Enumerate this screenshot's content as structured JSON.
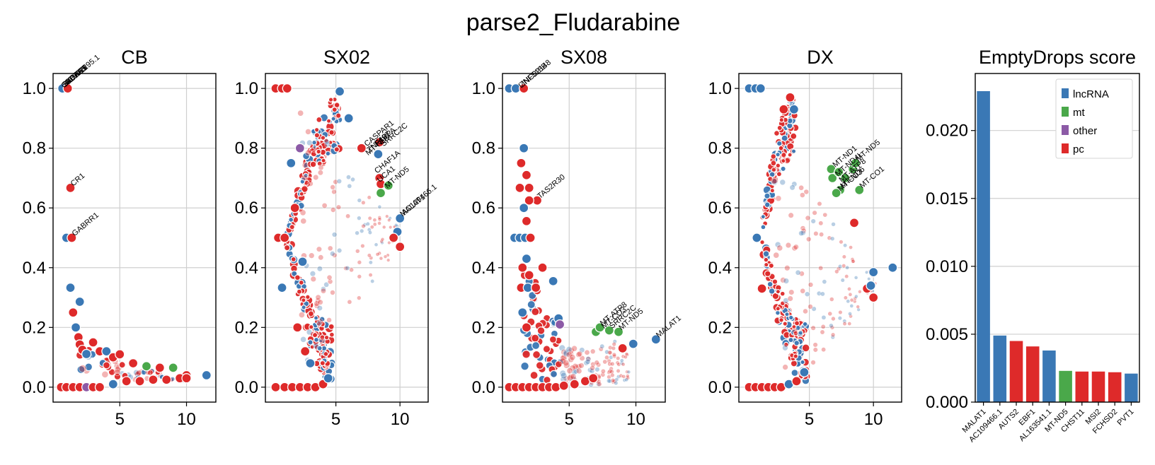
{
  "figure": {
    "suptitle": "parse2_Fludarabine"
  },
  "colors": {
    "lncRNA": "#3a78b5",
    "mt": "#4aa84a",
    "other": "#8c5aa6",
    "pc": "#de2a2a"
  },
  "chart_data": [
    {
      "type": "scatter",
      "title": "CB",
      "xlim": [
        0.0,
        12.2
      ],
      "ylim": [
        -0.05,
        1.05
      ],
      "xticks": [
        5,
        10
      ],
      "yticks": [
        0.0,
        0.2,
        0.4,
        0.6,
        0.8,
        1.0
      ],
      "ytick_labels": [
        "0.0",
        "0.2",
        "0.4",
        "0.6",
        "0.8",
        "1.0"
      ],
      "show_yticklabels": true,
      "grid": true,
      "points": [
        {
          "x": 0.7,
          "y": 1.0,
          "c": "lncRNA"
        },
        {
          "x": 1.1,
          "y": 1.0,
          "c": "pc"
        },
        {
          "x": 1.3,
          "y": 0.667,
          "c": "pc"
        },
        {
          "x": 1.0,
          "y": 0.5,
          "c": "lncRNA"
        },
        {
          "x": 1.4,
          "y": 0.5,
          "c": "pc"
        },
        {
          "x": 1.3,
          "y": 0.333,
          "c": "lncRNA"
        },
        {
          "x": 2.0,
          "y": 0.286,
          "c": "lncRNA"
        },
        {
          "x": 1.5,
          "y": 0.25,
          "c": "pc"
        },
        {
          "x": 1.7,
          "y": 0.2,
          "c": "lncRNA"
        },
        {
          "x": 1.9,
          "y": 0.167,
          "c": "pc"
        },
        {
          "x": 2.0,
          "y": 0.143,
          "c": "pc"
        },
        {
          "x": 2.2,
          "y": 0.125,
          "c": "pc"
        },
        {
          "x": 2.5,
          "y": 0.111,
          "c": "lncRNA"
        },
        {
          "x": 3.0,
          "y": 0.15,
          "c": "pc"
        },
        {
          "x": 3.5,
          "y": 0.12,
          "c": "pc"
        },
        {
          "x": 4.0,
          "y": 0.12,
          "c": "lncRNA"
        },
        {
          "x": 4.5,
          "y": 0.1,
          "c": "pc"
        },
        {
          "x": 5.0,
          "y": 0.11,
          "c": "pc"
        },
        {
          "x": 6.0,
          "y": 0.08,
          "c": "pc"
        },
        {
          "x": 7.0,
          "y": 0.07,
          "c": "mt"
        },
        {
          "x": 8.0,
          "y": 0.065,
          "c": "pc"
        },
        {
          "x": 9.0,
          "y": 0.065,
          "c": "mt"
        },
        {
          "x": 10.0,
          "y": 0.04,
          "c": "pc"
        },
        {
          "x": 11.5,
          "y": 0.04,
          "c": "lncRNA"
        },
        {
          "x": 0.6,
          "y": 0.0,
          "c": "pc"
        },
        {
          "x": 1.0,
          "y": 0.0,
          "c": "pc"
        },
        {
          "x": 1.5,
          "y": 0.0,
          "c": "pc"
        },
        {
          "x": 2.0,
          "y": 0.0,
          "c": "pc"
        },
        {
          "x": 2.5,
          "y": 0.0,
          "c": "other"
        },
        {
          "x": 3.0,
          "y": 0.0,
          "c": "pc"
        },
        {
          "x": 3.5,
          "y": 0.0,
          "c": "pc"
        },
        {
          "x": 4.5,
          "y": 0.01,
          "c": "lncRNA"
        },
        {
          "x": 5.5,
          "y": 0.02,
          "c": "pc"
        },
        {
          "x": 6.5,
          "y": 0.02,
          "c": "pc"
        },
        {
          "x": 7.5,
          "y": 0.025,
          "c": "pc"
        },
        {
          "x": 8.5,
          "y": 0.025,
          "c": "pc"
        },
        {
          "x": 9.5,
          "y": 0.03,
          "c": "pc"
        },
        {
          "x": 10.0,
          "y": 0.03,
          "c": "pc"
        }
      ],
      "labels": [
        {
          "text": "CR1",
          "x": 1.3,
          "y": 0.667
        },
        {
          "text": "GABRR1",
          "x": 1.4,
          "y": 0.5
        }
      ],
      "top_labels": [
        "GABRR1",
        "SLC6A5",
        "KCNJ16",
        "AC092295.1",
        "BCAS1"
      ],
      "top_labels_anchor": {
        "x": 0.8,
        "y": 1.0
      },
      "cloud": {
        "shape": "decay",
        "fromX": 2.0,
        "toX": 10.5,
        "yTop0": 0.16,
        "yTop1": 0.03,
        "yBot0": 0.03,
        "yBot1": 0.02,
        "density": 70
      }
    },
    {
      "type": "scatter",
      "title": "SX02",
      "xlim": [
        -0.5,
        12.2
      ],
      "ylim": [
        -0.05,
        1.05
      ],
      "xticks": [
        5,
        10
      ],
      "yticks": [
        0.0,
        0.2,
        0.4,
        0.6,
        0.8,
        1.0
      ],
      "ytick_labels": [
        "0.0",
        "0.2",
        "0.4",
        "0.6",
        "0.8",
        "1.0"
      ],
      "show_yticklabels": true,
      "grid": true,
      "points": [
        {
          "x": 0.3,
          "y": 1.0,
          "c": "pc"
        },
        {
          "x": 0.8,
          "y": 1.0,
          "c": "pc"
        },
        {
          "x": 1.2,
          "y": 1.0,
          "c": "pc"
        },
        {
          "x": 0.5,
          "y": 0.5,
          "c": "pc"
        },
        {
          "x": 1.0,
          "y": 0.5,
          "c": "pc"
        },
        {
          "x": 0.8,
          "y": 0.333,
          "c": "lncRNA"
        },
        {
          "x": 0.3,
          "y": 0.0,
          "c": "pc"
        },
        {
          "x": 1.0,
          "y": 0.0,
          "c": "pc"
        },
        {
          "x": 1.6,
          "y": 0.0,
          "c": "pc"
        },
        {
          "x": 2.2,
          "y": 0.0,
          "c": "pc"
        },
        {
          "x": 2.8,
          "y": 0.0,
          "c": "pc"
        },
        {
          "x": 3.4,
          "y": 0.0,
          "c": "pc"
        },
        {
          "x": 4.0,
          "y": 0.01,
          "c": "pc"
        },
        {
          "x": 4.4,
          "y": 0.03,
          "c": "lncRNA"
        },
        {
          "x": 6.0,
          "y": 0.9,
          "c": "lncRNA"
        },
        {
          "x": 5.3,
          "y": 0.99,
          "c": "lncRNA"
        },
        {
          "x": 7.0,
          "y": 0.8,
          "c": "pc"
        },
        {
          "x": 8.4,
          "y": 0.82,
          "c": "pc"
        },
        {
          "x": 8.3,
          "y": 0.78,
          "c": "lncRNA"
        },
        {
          "x": 8.4,
          "y": 0.7,
          "c": "pc"
        },
        {
          "x": 8.5,
          "y": 0.68,
          "c": "pc"
        },
        {
          "x": 9.1,
          "y": 0.675,
          "c": "mt"
        },
        {
          "x": 8.5,
          "y": 0.65,
          "c": "mt"
        },
        {
          "x": 10.0,
          "y": 0.565,
          "c": "lncRNA"
        },
        {
          "x": 9.8,
          "y": 0.52,
          "c": "lncRNA"
        },
        {
          "x": 10.0,
          "y": 0.47,
          "c": "pc"
        },
        {
          "x": 9.5,
          "y": 0.5,
          "c": "pc"
        },
        {
          "x": 2.2,
          "y": 0.8,
          "c": "other"
        },
        {
          "x": 1.5,
          "y": 0.75,
          "c": "lncRNA"
        },
        {
          "x": 1.8,
          "y": 0.6,
          "c": "pc"
        },
        {
          "x": 2.4,
          "y": 0.42,
          "c": "lncRNA"
        },
        {
          "x": 2.0,
          "y": 0.2,
          "c": "pc"
        },
        {
          "x": 2.6,
          "y": 0.12,
          "c": "pc"
        },
        {
          "x": 3.0,
          "y": 0.08,
          "c": "lncRNA"
        }
      ],
      "labels": [
        {
          "text": "CASPAR1",
          "x": 7.2,
          "y": 0.8
        },
        {
          "text": "ZNF487",
          "x": 7.4,
          "y": 0.78
        },
        {
          "text": "MT-ND6",
          "x": 7.3,
          "y": 0.77
        },
        {
          "text": "PAPPA",
          "x": 8.0,
          "y": 0.8
        },
        {
          "text": "CHAF1A",
          "x": 8.0,
          "y": 0.71
        },
        {
          "text": "UCA1",
          "x": 8.2,
          "y": 0.68
        },
        {
          "text": "SRRC2C",
          "x": 8.5,
          "y": 0.8
        },
        {
          "text": "MT-ND5",
          "x": 8.8,
          "y": 0.66
        },
        {
          "text": "MALAT1",
          "x": 10.0,
          "y": 0.565
        },
        {
          "text": "AC109466.1",
          "x": 10.1,
          "y": 0.57
        }
      ],
      "cloud": {
        "shape": "fan",
        "apexX": 1.0,
        "apexY": 0.5,
        "topX": 5.0,
        "topY": 0.98,
        "botX": 4.4,
        "botY": 0.02,
        "endX": 10.0,
        "endY": 0.5,
        "density": 260
      }
    },
    {
      "type": "scatter",
      "title": "SX08",
      "xlim": [
        0.0,
        12.2
      ],
      "ylim": [
        -0.05,
        1.05
      ],
      "xticks": [
        5,
        10
      ],
      "yticks": [
        0.0,
        0.2,
        0.4,
        0.6,
        0.8,
        1.0
      ],
      "ytick_labels": [
        "0.0",
        "0.2",
        "0.4",
        "0.6",
        "0.8",
        "1.0"
      ],
      "show_yticklabels": true,
      "grid": true,
      "points": [
        {
          "x": 0.5,
          "y": 1.0,
          "c": "lncRNA"
        },
        {
          "x": 1.0,
          "y": 1.0,
          "c": "lncRNA"
        },
        {
          "x": 1.6,
          "y": 1.0,
          "c": "pc"
        },
        {
          "x": 1.6,
          "y": 0.8,
          "c": "lncRNA"
        },
        {
          "x": 1.4,
          "y": 0.75,
          "c": "pc"
        },
        {
          "x": 1.8,
          "y": 0.71,
          "c": "pc"
        },
        {
          "x": 1.3,
          "y": 0.667,
          "c": "pc"
        },
        {
          "x": 2.0,
          "y": 0.667,
          "c": "pc"
        },
        {
          "x": 2.6,
          "y": 0.625,
          "c": "pc"
        },
        {
          "x": 2.0,
          "y": 0.625,
          "c": "pc"
        },
        {
          "x": 1.6,
          "y": 0.6,
          "c": "lncRNA"
        },
        {
          "x": 1.8,
          "y": 0.556,
          "c": "pc"
        },
        {
          "x": 0.9,
          "y": 0.5,
          "c": "lncRNA"
        },
        {
          "x": 1.3,
          "y": 0.5,
          "c": "lncRNA"
        },
        {
          "x": 1.7,
          "y": 0.5,
          "c": "lncRNA"
        },
        {
          "x": 2.1,
          "y": 0.5,
          "c": "pc"
        },
        {
          "x": 1.8,
          "y": 0.43,
          "c": "lncRNA"
        },
        {
          "x": 1.5,
          "y": 0.4,
          "c": "pc"
        },
        {
          "x": 2.0,
          "y": 0.375,
          "c": "pc"
        },
        {
          "x": 3.0,
          "y": 0.4,
          "c": "pc"
        },
        {
          "x": 3.8,
          "y": 0.355,
          "c": "lncRNA"
        },
        {
          "x": 1.4,
          "y": 0.333,
          "c": "pc"
        },
        {
          "x": 1.9,
          "y": 0.333,
          "c": "lncRNA"
        },
        {
          "x": 2.5,
          "y": 0.333,
          "c": "pc"
        },
        {
          "x": 1.5,
          "y": 0.25,
          "c": "lncRNA"
        },
        {
          "x": 1.8,
          "y": 0.2,
          "c": "pc"
        },
        {
          "x": 4.2,
          "y": 0.23,
          "c": "lncRNA"
        },
        {
          "x": 4.3,
          "y": 0.21,
          "c": "other"
        },
        {
          "x": 7.0,
          "y": 0.185,
          "c": "mt"
        },
        {
          "x": 7.3,
          "y": 0.2,
          "c": "mt"
        },
        {
          "x": 8.0,
          "y": 0.19,
          "c": "mt"
        },
        {
          "x": 8.7,
          "y": 0.185,
          "c": "mt"
        },
        {
          "x": 9.8,
          "y": 0.145,
          "c": "lncRNA"
        },
        {
          "x": 11.5,
          "y": 0.16,
          "c": "lncRNA"
        },
        {
          "x": 9.0,
          "y": 0.13,
          "c": "pc"
        },
        {
          "x": 0.5,
          "y": 0.0,
          "c": "pc"
        },
        {
          "x": 1.0,
          "y": 0.0,
          "c": "pc"
        },
        {
          "x": 1.5,
          "y": 0.0,
          "c": "pc"
        },
        {
          "x": 2.0,
          "y": 0.0,
          "c": "pc"
        },
        {
          "x": 2.5,
          "y": 0.0,
          "c": "pc"
        },
        {
          "x": 3.0,
          "y": 0.0,
          "c": "pc"
        },
        {
          "x": 3.5,
          "y": 0.0,
          "c": "pc"
        },
        {
          "x": 4.0,
          "y": 0.0,
          "c": "pc"
        },
        {
          "x": 4.6,
          "y": 0.005,
          "c": "pc"
        },
        {
          "x": 5.4,
          "y": 0.01,
          "c": "pc"
        },
        {
          "x": 6.2,
          "y": 0.02,
          "c": "pc"
        },
        {
          "x": 6.8,
          "y": 0.03,
          "c": "pc"
        }
      ],
      "labels": [
        {
          "text": "TAS2R30",
          "x": 2.6,
          "y": 0.625
        },
        {
          "text": "MT-ATP8",
          "x": 7.3,
          "y": 0.2
        },
        {
          "text": "MT-CO3",
          "x": 7.4,
          "y": 0.19
        },
        {
          "text": "SRRC2C",
          "x": 8.0,
          "y": 0.19
        },
        {
          "text": "MT-ND5",
          "x": 8.7,
          "y": 0.185
        },
        {
          "text": "MALAT1",
          "x": 11.5,
          "y": 0.16
        }
      ],
      "top_labels": [
        "LINC02148",
        "ZNF518B"
      ],
      "top_labels_anchor": {
        "x": 1.4,
        "y": 1.0
      },
      "cloud": {
        "shape": "valley",
        "fromX": 1.6,
        "toX": 9.5,
        "yTop0": 0.45,
        "yMin": 0.13,
        "yEnd": 0.16,
        "density": 180
      }
    },
    {
      "type": "scatter",
      "title": "DX",
      "xlim": [
        -0.5,
        12.2
      ],
      "ylim": [
        -0.05,
        1.05
      ],
      "xticks": [
        5,
        10
      ],
      "yticks": [
        0.0,
        0.2,
        0.4,
        0.6,
        0.8,
        1.0
      ],
      "ytick_labels": [
        "0.0",
        "0.2",
        "0.4",
        "0.6",
        "0.8",
        "1.0"
      ],
      "show_yticklabels": true,
      "grid": true,
      "points": [
        {
          "x": 0.3,
          "y": 1.0,
          "c": "lncRNA"
        },
        {
          "x": 0.8,
          "y": 1.0,
          "c": "lncRNA"
        },
        {
          "x": 1.2,
          "y": 1.0,
          "c": "lncRNA"
        },
        {
          "x": 0.9,
          "y": 0.5,
          "c": "lncRNA"
        },
        {
          "x": 1.3,
          "y": 0.33,
          "c": "pc"
        },
        {
          "x": 0.3,
          "y": 0.0,
          "c": "pc"
        },
        {
          "x": 0.8,
          "y": 0.0,
          "c": "pc"
        },
        {
          "x": 1.3,
          "y": 0.0,
          "c": "pc"
        },
        {
          "x": 1.8,
          "y": 0.0,
          "c": "pc"
        },
        {
          "x": 2.3,
          "y": 0.0,
          "c": "pc"
        },
        {
          "x": 2.8,
          "y": 0.0,
          "c": "pc"
        },
        {
          "x": 3.4,
          "y": 0.01,
          "c": "lncRNA"
        },
        {
          "x": 4.0,
          "y": 0.02,
          "c": "pc"
        },
        {
          "x": 4.6,
          "y": 0.05,
          "c": "lncRNA"
        },
        {
          "x": 3.8,
          "y": 0.93,
          "c": "lncRNA"
        },
        {
          "x": 3.5,
          "y": 0.97,
          "c": "pc"
        },
        {
          "x": 3.0,
          "y": 0.93,
          "c": "pc"
        },
        {
          "x": 6.7,
          "y": 0.73,
          "c": "mt"
        },
        {
          "x": 6.8,
          "y": 0.7,
          "c": "mt"
        },
        {
          "x": 7.3,
          "y": 0.72,
          "c": "mt"
        },
        {
          "x": 7.8,
          "y": 0.7,
          "c": "mt"
        },
        {
          "x": 8.4,
          "y": 0.73,
          "c": "mt"
        },
        {
          "x": 8.6,
          "y": 0.75,
          "c": "mt"
        },
        {
          "x": 7.4,
          "y": 0.66,
          "c": "mt"
        },
        {
          "x": 7.1,
          "y": 0.65,
          "c": "mt"
        },
        {
          "x": 8.9,
          "y": 0.66,
          "c": "mt"
        },
        {
          "x": 8.5,
          "y": 0.55,
          "c": "pc"
        },
        {
          "x": 9.5,
          "y": 0.33,
          "c": "pc"
        },
        {
          "x": 10.0,
          "y": 0.3,
          "c": "pc"
        },
        {
          "x": 10.0,
          "y": 0.385,
          "c": "lncRNA"
        },
        {
          "x": 11.5,
          "y": 0.4,
          "c": "lncRNA"
        },
        {
          "x": 9.8,
          "y": 0.34,
          "c": "lncRNA"
        }
      ],
      "labels": [
        {
          "text": "MT-ND1",
          "x": 6.8,
          "y": 0.73
        },
        {
          "text": "MT-ND4L",
          "x": 7.0,
          "y": 0.7
        },
        {
          "text": "MT-ATP8",
          "x": 7.3,
          "y": 0.68
        },
        {
          "text": "MT-ND6",
          "x": 7.4,
          "y": 0.66
        },
        {
          "text": "MT-CO3",
          "x": 7.2,
          "y": 0.65
        },
        {
          "text": "MT-ND5",
          "x": 8.6,
          "y": 0.75
        },
        {
          "text": "MT-CO1",
          "x": 8.9,
          "y": 0.66
        }
      ],
      "cloud": {
        "shape": "fan",
        "apexX": 1.0,
        "apexY": 0.5,
        "topX": 3.6,
        "topY": 0.97,
        "botX": 4.6,
        "botY": 0.02,
        "endX": 10.2,
        "endY": 0.33,
        "density": 240
      }
    },
    {
      "type": "bar",
      "title": "EmptyDrops score",
      "categories": [
        "MALAT1",
        "AC109466.1",
        "AUTS2",
        "EBF1",
        "AL163541.1",
        "MT-ND5",
        "CHST11",
        "MSI2",
        "FCHSD2",
        "PVT1"
      ],
      "values": [
        0.0229,
        0.0049,
        0.0045,
        0.0041,
        0.0038,
        0.0023,
        0.00225,
        0.00225,
        0.0022,
        0.0021
      ],
      "classes": [
        "lncRNA",
        "lncRNA",
        "pc",
        "pc",
        "lncRNA",
        "mt",
        "pc",
        "pc",
        "pc",
        "lncRNA"
      ],
      "ylim": [
        0.0,
        0.0242
      ],
      "yticks": [
        0.0,
        0.005,
        0.01,
        0.015,
        0.02
      ],
      "ytick_labels": [
        "0.000",
        "0.005",
        "0.010",
        "0.015",
        "0.020"
      ],
      "grid": true,
      "legend": {
        "placement": "top-right",
        "entries": [
          "lncRNA",
          "mt",
          "other",
          "pc"
        ]
      }
    }
  ]
}
